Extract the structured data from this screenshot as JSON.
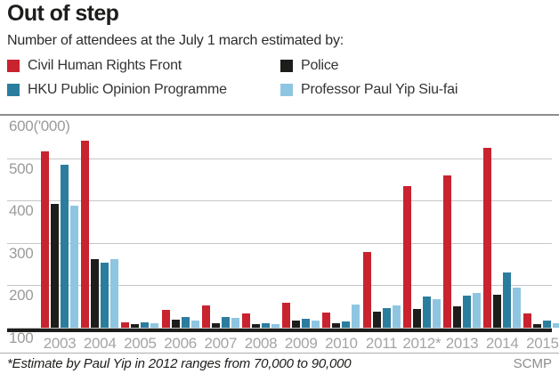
{
  "title": "Out of step",
  "subtitle": "Number of attendees at the July 1 march estimated by:",
  "legend": [
    {
      "label": "Civil Human Rights Front",
      "color": "#c8232f"
    },
    {
      "label": "Police",
      "color": "#1d1d1b"
    },
    {
      "label": "HKU Public Opinion Programme",
      "color": "#2b7d9e"
    },
    {
      "label": "Professor Paul Yip Siu-fai",
      "color": "#8ec6e2"
    }
  ],
  "footnote": "*Estimate by Paul Yip in 2012 ranges from 70,000 to 90,000",
  "source": "SCMP",
  "chart_data": {
    "type": "bar",
    "title": "Out of step",
    "subtitle": "Number of attendees at the July 1 march estimated by:",
    "unit": "thousands ('000)",
    "ylim": [
      0,
      600
    ],
    "yticks": [
      600,
      500,
      400,
      300,
      200,
      100
    ],
    "ytick_labels": [
      "600('000)",
      "500",
      "400",
      "300",
      "200",
      "100"
    ],
    "grid": true,
    "legend_position": "top",
    "categories": [
      "2003",
      "2004",
      "2005",
      "2006",
      "2007",
      "2008",
      "2009",
      "2010",
      "2011",
      "2012*",
      "2013",
      "2014",
      "2015"
    ],
    "series": [
      {
        "name": "Civil Human Rights Front",
        "color": "#c8232f",
        "values": [
          500,
          530,
          15,
          50,
          62,
          40,
          70,
          44,
          215,
          400,
          430,
          510,
          41
        ]
      },
      {
        "name": "Police",
        "color": "#1d1d1b",
        "values": [
          350,
          195,
          9,
          23,
          13,
          9,
          19,
          13,
          45,
          54,
          60,
          93,
          11
        ]
      },
      {
        "name": "HKU Public Opinion Programme",
        "color": "#2b7d9e",
        "values": [
          462,
          184,
          14,
          30,
          31,
          13,
          26,
          17,
          55,
          87,
          91,
          157,
          19
        ]
      },
      {
        "name": "Professor Paul Yip Siu-fai",
        "color": "#8ec6e2",
        "values": [
          345,
          195,
          12,
          21,
          27,
          10,
          20,
          65,
          63,
          80,
          98,
          114,
          13
        ]
      }
    ]
  }
}
